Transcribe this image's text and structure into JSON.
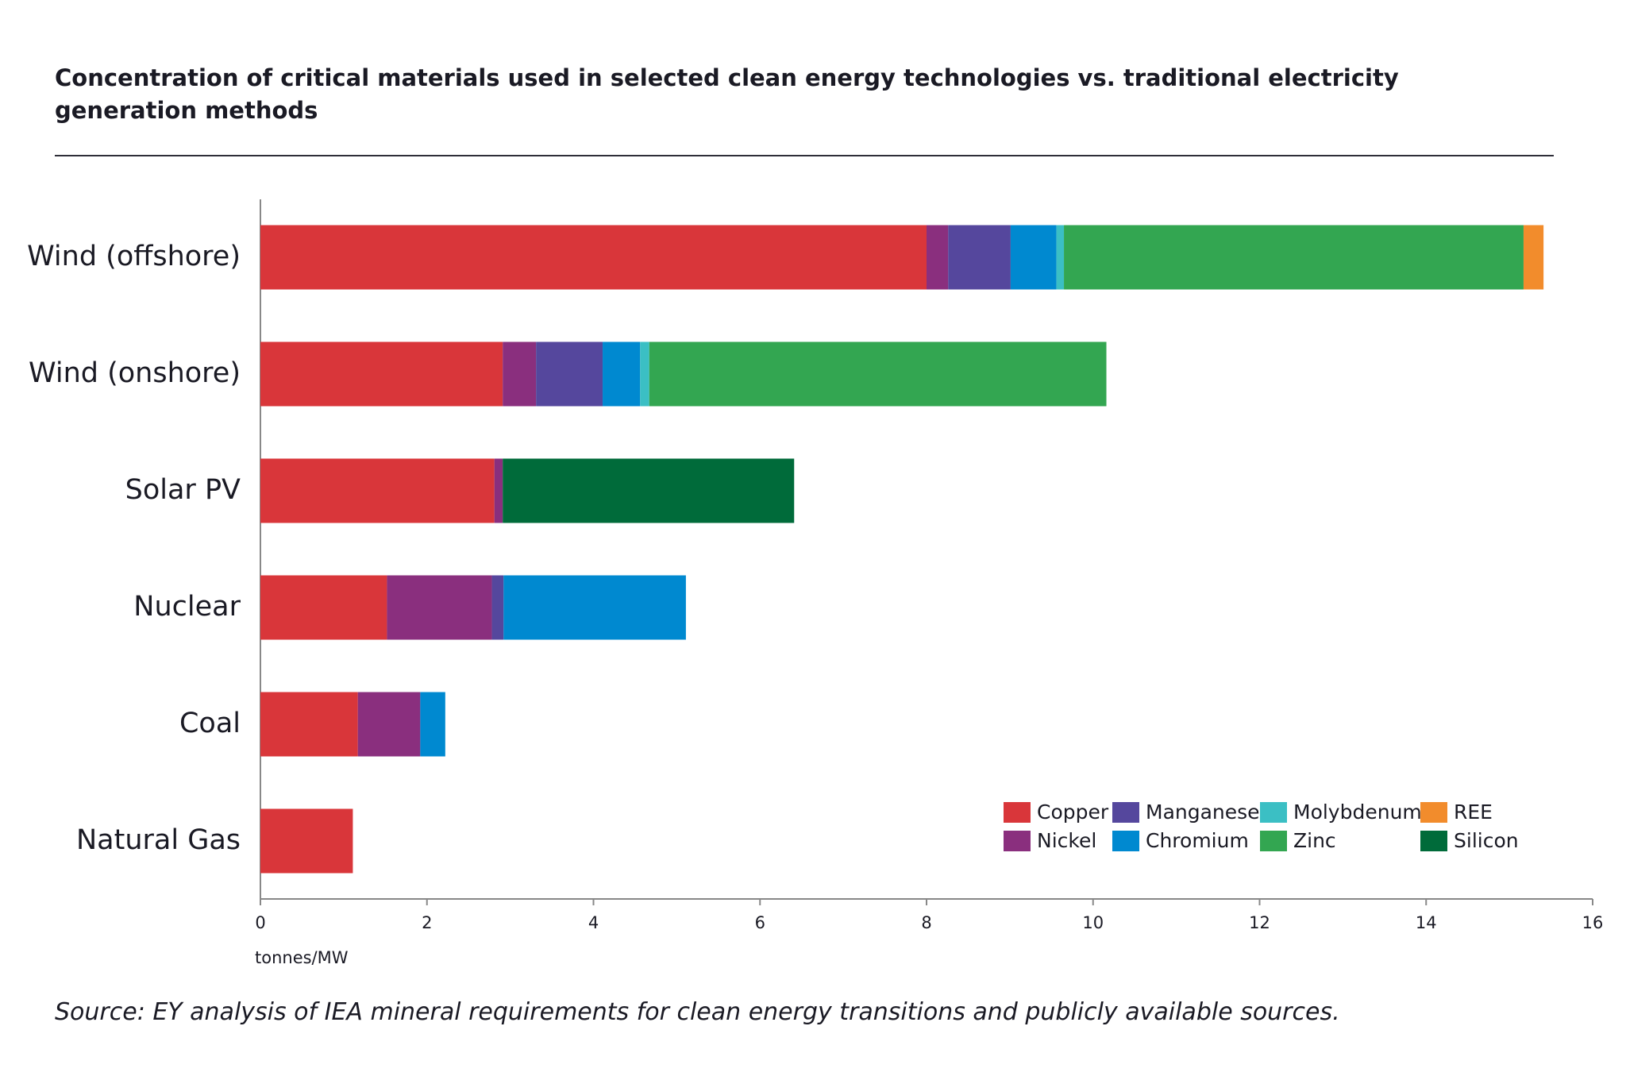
{
  "chart_data": {
    "type": "stacked-barh",
    "title": "Concentration of critical materials used in selected clean energy technologies vs. traditional electricity generation methods",
    "x_label": "tonnes/MW",
    "source": "Source: EY analysis of IEA mineral requirements for clean energy transitions and publicly available sources.",
    "categories": [
      "Wind (offshore)",
      "Wind (onshore)",
      "Solar PV",
      "Nuclear",
      "Coal",
      "Natural Gas"
    ],
    "series": [
      {
        "name": "Copper",
        "color": "#d9363a",
        "values": [
          8.0,
          2.91,
          2.81,
          1.52,
          1.17,
          1.11
        ]
      },
      {
        "name": "Nickel",
        "color": "#8a2f7e",
        "values": [
          0.26,
          0.4,
          0.1,
          1.26,
          0.75,
          0
        ]
      },
      {
        "name": "Manganese",
        "color": "#55479d",
        "values": [
          0.75,
          0.8,
          0,
          0.14,
          0,
          0
        ]
      },
      {
        "name": "Chromium",
        "color": "#0089d0",
        "values": [
          0.55,
          0.45,
          0,
          2.19,
          0.3,
          0
        ]
      },
      {
        "name": "Molybdenum",
        "color": "#3bbfc4",
        "values": [
          0.09,
          0.11,
          0,
          0,
          0,
          0
        ]
      },
      {
        "name": "Zinc",
        "color": "#33a651",
        "values": [
          5.52,
          5.49,
          0,
          0,
          0,
          0
        ]
      },
      {
        "name": "REE",
        "color": "#f28c2c",
        "values": [
          0.24,
          0,
          0,
          0,
          0,
          0
        ]
      },
      {
        "name": "Silicon",
        "color": "#006b3a",
        "values": [
          0,
          0,
          3.5,
          0,
          0,
          0
        ]
      }
    ],
    "xlim": [
      0,
      16
    ],
    "xticks": [
      0,
      2,
      4,
      6,
      8,
      10,
      12,
      14,
      16
    ],
    "legend": "lower right",
    "grid": false
  }
}
